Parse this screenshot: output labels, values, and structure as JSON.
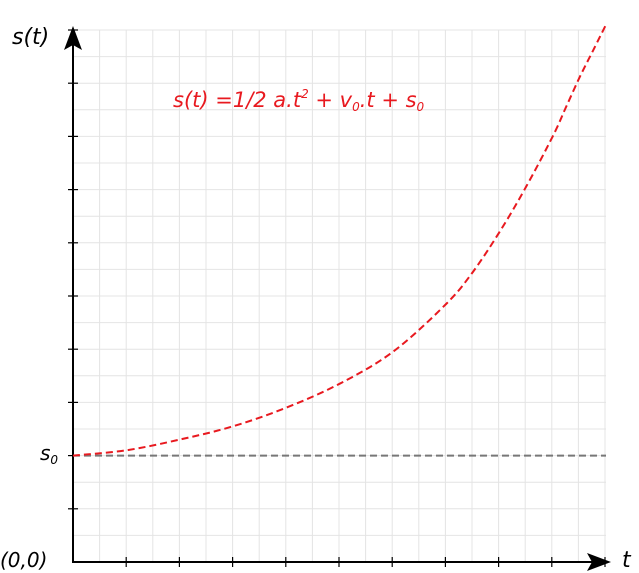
{
  "chart_data": {
    "type": "line",
    "title": "",
    "xlabel": "t",
    "ylabel": "s(t)",
    "origin_label": "(0,0)",
    "formula": {
      "lhs": "s(t) =1/2 a.t",
      "exp": "2",
      "mid": " + v",
      "sub1": "0",
      "mid2": ".t + s",
      "sub2": "0"
    },
    "reference_line": {
      "label": "s",
      "label_sub": "0",
      "y": 2,
      "color": "#777777",
      "style": "dashed"
    },
    "xlim": [
      0,
      10
    ],
    "ylim": [
      0,
      10
    ],
    "grid": true,
    "series": [
      {
        "color": "#e8191f",
        "style": "dashed",
        "x": [
          0,
          1,
          2,
          3,
          4,
          5,
          6,
          7,
          7.5,
          8,
          8.5,
          9,
          9.25,
          9.5,
          9.75,
          10
        ],
        "y": [
          2,
          2.1,
          2.3,
          2.55,
          2.9,
          3.35,
          3.95,
          4.85,
          5.45,
          6.2,
          7.05,
          8.0,
          8.55,
          9.1,
          9.6,
          10.1
        ]
      }
    ]
  }
}
